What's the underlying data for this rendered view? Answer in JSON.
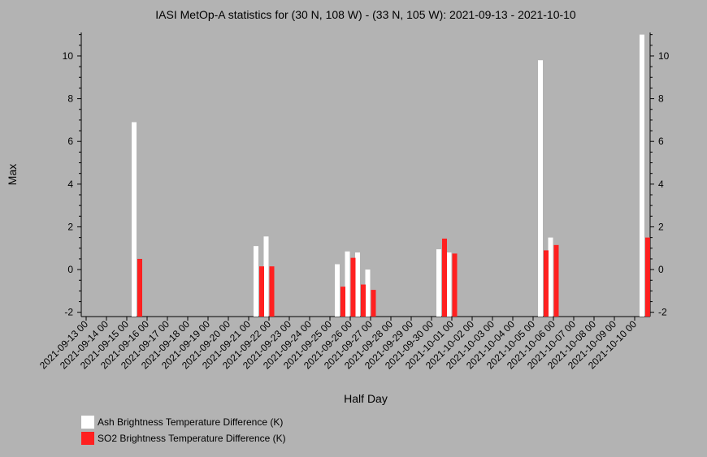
{
  "chart_data": {
    "type": "bar",
    "title": "IASI MetOp-A statistics for (30 N, 108 W) - (33 N, 105 W): 2021-09-13 - 2021-10-10",
    "xlabel": "Half Day",
    "ylabel": "Max",
    "ylim": [
      -2.2,
      11.1
    ],
    "yticks": [
      -2,
      0,
      2,
      4,
      6,
      8,
      10
    ],
    "xlim": [
      0,
      55
    ],
    "xtick_labels": [
      "2021-09-13 00",
      "2021-09-14 00",
      "2021-09-15 00",
      "2021-09-16 00",
      "2021-09-17 00",
      "2021-09-18 00",
      "2021-09-19 00",
      "2021-09-20 00",
      "2021-09-21 00",
      "2021-09-22 00",
      "2021-09-23 00",
      "2021-09-24 00",
      "2021-09-25 00",
      "2021-09-26 00",
      "2021-09-27 00",
      "2021-09-28 00",
      "2021-09-29 00",
      "2021-09-30 00",
      "2021-10-01 00",
      "2021-10-02 00",
      "2021-10-03 00",
      "2021-10-04 00",
      "2021-10-05 00",
      "2021-10-06 00",
      "2021-10-07 00",
      "2021-10-08 00",
      "2021-10-09 00",
      "2021-10-10 00"
    ],
    "grid": false,
    "legend_position": "bottom-left",
    "series": [
      {
        "name": "Ash Brightness Temperature Difference (K)",
        "color": "#ffffff",
        "points": [
          {
            "half_day": 5,
            "value": 6.9
          },
          {
            "half_day": 17,
            "value": 1.1
          },
          {
            "half_day": 18,
            "value": 1.55
          },
          {
            "half_day": 25,
            "value": 0.25
          },
          {
            "half_day": 26,
            "value": 0.85
          },
          {
            "half_day": 27,
            "value": 0.8
          },
          {
            "half_day": 28,
            "value": 0.0
          },
          {
            "half_day": 35,
            "value": 0.95
          },
          {
            "half_day": 36,
            "value": 0.8
          },
          {
            "half_day": 45,
            "value": 9.8
          },
          {
            "half_day": 46,
            "value": 1.5
          },
          {
            "half_day": 55,
            "value": 11.0
          }
        ]
      },
      {
        "name": "SO2 Brightness Temperature Difference (K)",
        "color": "#ff2020",
        "points": [
          {
            "half_day": 5,
            "value": 0.5
          },
          {
            "half_day": 17,
            "value": 0.15
          },
          {
            "half_day": 18,
            "value": 0.15
          },
          {
            "half_day": 25,
            "value": -0.8
          },
          {
            "half_day": 26,
            "value": 0.55
          },
          {
            "half_day": 27,
            "value": -0.7
          },
          {
            "half_day": 28,
            "value": -0.95
          },
          {
            "half_day": 35,
            "value": 1.45
          },
          {
            "half_day": 36,
            "value": 0.75
          },
          {
            "half_day": 45,
            "value": 0.9
          },
          {
            "half_day": 46,
            "value": 1.15
          },
          {
            "half_day": 55,
            "value": 1.5
          }
        ]
      }
    ]
  },
  "legend": {
    "ash_label": "Ash Brightness Temperature Difference (K)",
    "so2_label": "SO2 Brightness Temperature Difference (K)",
    "ash_color": "#ffffff",
    "so2_color": "#ff2020"
  }
}
